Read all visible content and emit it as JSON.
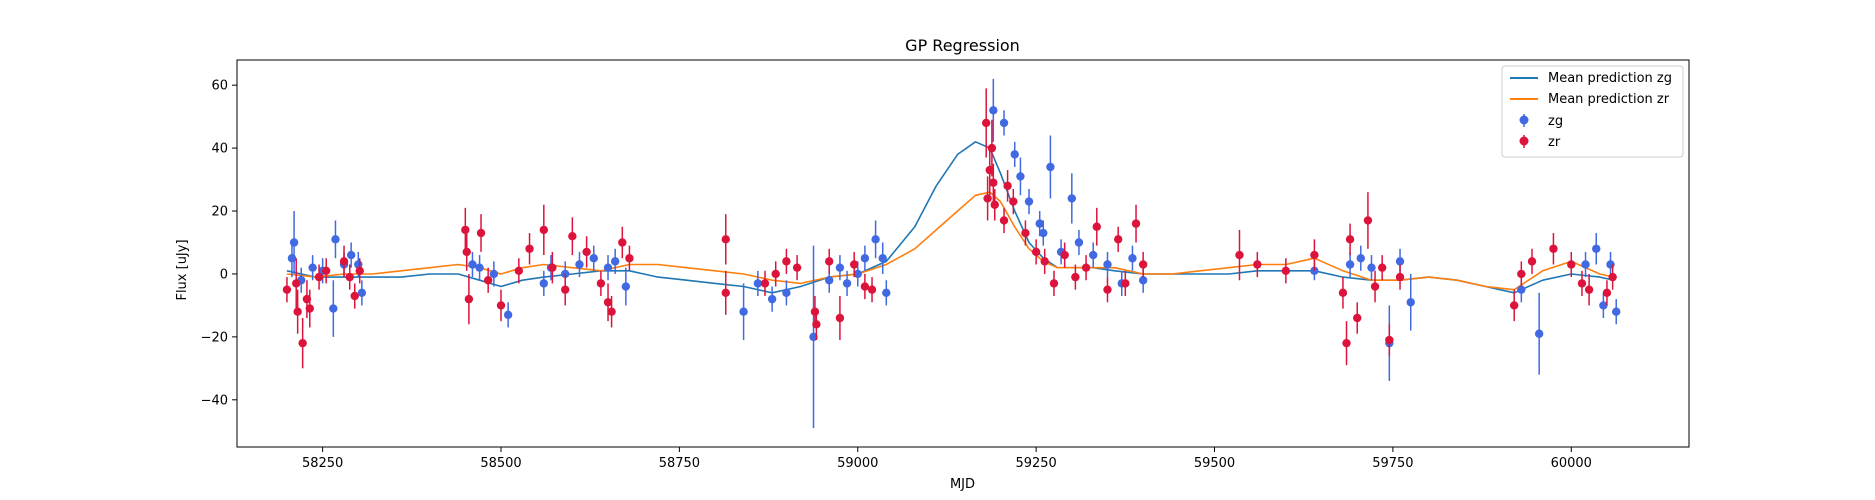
{
  "chart_data": {
    "type": "scatter",
    "title": "GP Regression",
    "xlabel": "MJD",
    "ylabel": "Flux [uJy]",
    "xlim": [
      58130,
      60165
    ],
    "ylim": [
      -55,
      68
    ],
    "xticks": [
      58250,
      58500,
      58750,
      59000,
      59250,
      59500,
      59750,
      60000
    ],
    "yticks": [
      -40,
      -20,
      0,
      20,
      40,
      60
    ],
    "grid": false,
    "legend_position": "top-right",
    "legend": [
      "Mean prediction zg",
      "Mean prediction zr",
      "zg",
      "zr"
    ],
    "colors": {
      "zg_line": "#1f77b4",
      "zr_line": "#ff7f0e",
      "zg_points": "#4169e1",
      "zr_points": "#dc143c"
    },
    "lines": [
      {
        "name": "Mean prediction zg",
        "x": [
          58200,
          58240,
          58280,
          58320,
          58360,
          58400,
          58440,
          58470,
          58500,
          58530,
          58560,
          58600,
          58640,
          58680,
          58720,
          58760,
          58800,
          58840,
          58880,
          58920,
          58960,
          59000,
          59040,
          59080,
          59110,
          59140,
          59165,
          59185,
          59200,
          59220,
          59240,
          59260,
          59280,
          59300,
          59330,
          59360,
          59400,
          59440,
          59480,
          59520,
          59560,
          59600,
          59640,
          59680,
          59720,
          59760,
          59800,
          59840,
          59880,
          59920,
          59960,
          60000,
          60040,
          60060
        ],
        "y": [
          1,
          -1,
          -1,
          -1,
          -1,
          0,
          0,
          -2,
          -4,
          -2,
          -1,
          0,
          1,
          1,
          -1,
          -2,
          -3,
          -4,
          -6,
          -4,
          -1,
          0,
          4,
          15,
          28,
          38,
          42,
          40,
          32,
          20,
          10,
          5,
          2,
          2,
          2,
          1,
          0,
          0,
          0,
          0,
          1,
          1,
          1,
          -1,
          -2,
          -2,
          -1,
          -2,
          -4,
          -6,
          -2,
          0,
          -1,
          -2
        ]
      },
      {
        "name": "Mean prediction zr",
        "x": [
          58200,
          58240,
          58280,
          58320,
          58360,
          58400,
          58440,
          58470,
          58500,
          58530,
          58560,
          58600,
          58640,
          58680,
          58720,
          58760,
          58800,
          58840,
          58880,
          58920,
          58960,
          59000,
          59040,
          59080,
          59110,
          59140,
          59165,
          59185,
          59200,
          59220,
          59240,
          59260,
          59280,
          59300,
          59330,
          59360,
          59400,
          59440,
          59480,
          59520,
          59560,
          59600,
          59640,
          59680,
          59720,
          59760,
          59800,
          59840,
          59880,
          59920,
          59960,
          60000,
          60040,
          60060
        ],
        "y": [
          0,
          -1,
          0,
          0,
          1,
          2,
          3,
          2,
          0,
          2,
          3,
          2,
          1,
          3,
          3,
          2,
          1,
          0,
          -2,
          -3,
          -1,
          0,
          3,
          8,
          14,
          20,
          25,
          26,
          23,
          15,
          8,
          4,
          2,
          2,
          2,
          2,
          0,
          0,
          1,
          2,
          3,
          3,
          5,
          1,
          -2,
          -2,
          -1,
          -2,
          -4,
          -5,
          1,
          4,
          0,
          -1
        ]
      }
    ],
    "series": [
      {
        "name": "zg",
        "points": [
          {
            "x": 58207,
            "y": 5,
            "err": 6
          },
          {
            "x": 58210,
            "y": 10,
            "err": 10
          },
          {
            "x": 58220,
            "y": -2,
            "err": 4
          },
          {
            "x": 58236,
            "y": 2,
            "err": 4
          },
          {
            "x": 58250,
            "y": 1,
            "err": 4
          },
          {
            "x": 58265,
            "y": -11,
            "err": 9
          },
          {
            "x": 58268,
            "y": 11,
            "err": 6
          },
          {
            "x": 58280,
            "y": 3,
            "err": 4
          },
          {
            "x": 58290,
            "y": 6,
            "err": 4
          },
          {
            "x": 58300,
            "y": 3,
            "err": 4
          },
          {
            "x": 58305,
            "y": -6,
            "err": 4
          },
          {
            "x": 58460,
            "y": 3,
            "err": 4
          },
          {
            "x": 58470,
            "y": 2,
            "err": 4
          },
          {
            "x": 58490,
            "y": 0,
            "err": 4
          },
          {
            "x": 58510,
            "y": -13,
            "err": 4
          },
          {
            "x": 58560,
            "y": -3,
            "err": 4
          },
          {
            "x": 58570,
            "y": 2,
            "err": 4
          },
          {
            "x": 58590,
            "y": 0,
            "err": 4
          },
          {
            "x": 58610,
            "y": 3,
            "err": 4
          },
          {
            "x": 58630,
            "y": 5,
            "err": 4
          },
          {
            "x": 58650,
            "y": 2,
            "err": 4
          },
          {
            "x": 58660,
            "y": 4,
            "err": 4
          },
          {
            "x": 58675,
            "y": -4,
            "err": 6
          },
          {
            "x": 58840,
            "y": -12,
            "err": 9
          },
          {
            "x": 58860,
            "y": -3,
            "err": 4
          },
          {
            "x": 58880,
            "y": -8,
            "err": 4
          },
          {
            "x": 58900,
            "y": -6,
            "err": 4
          },
          {
            "x": 58938,
            "y": -20,
            "err": 29
          },
          {
            "x": 58960,
            "y": -2,
            "err": 4
          },
          {
            "x": 58975,
            "y": 2,
            "err": 4
          },
          {
            "x": 58985,
            "y": -3,
            "err": 4
          },
          {
            "x": 59000,
            "y": 0,
            "err": 4
          },
          {
            "x": 59010,
            "y": 5,
            "err": 4
          },
          {
            "x": 59025,
            "y": 11,
            "err": 6
          },
          {
            "x": 59035,
            "y": 5,
            "err": 5
          },
          {
            "x": 59040,
            "y": -6,
            "err": 4
          },
          {
            "x": 59190,
            "y": 52,
            "err": 10
          },
          {
            "x": 59205,
            "y": 48,
            "err": 4
          },
          {
            "x": 59220,
            "y": 38,
            "err": 4
          },
          {
            "x": 59228,
            "y": 31,
            "err": 6
          },
          {
            "x": 59240,
            "y": 23,
            "err": 4
          },
          {
            "x": 59255,
            "y": 16,
            "err": 4
          },
          {
            "x": 59260,
            "y": 13,
            "err": 4
          },
          {
            "x": 59270,
            "y": 34,
            "err": 10
          },
          {
            "x": 59285,
            "y": 7,
            "err": 4
          },
          {
            "x": 59300,
            "y": 24,
            "err": 8
          },
          {
            "x": 59310,
            "y": 10,
            "err": 4
          },
          {
            "x": 59330,
            "y": 6,
            "err": 4
          },
          {
            "x": 59350,
            "y": 3,
            "err": 4
          },
          {
            "x": 59370,
            "y": -3,
            "err": 4
          },
          {
            "x": 59385,
            "y": 5,
            "err": 4
          },
          {
            "x": 59400,
            "y": -2,
            "err": 4
          },
          {
            "x": 59640,
            "y": 1,
            "err": 3
          },
          {
            "x": 59690,
            "y": 3,
            "err": 4
          },
          {
            "x": 59705,
            "y": 5,
            "err": 4
          },
          {
            "x": 59720,
            "y": 2,
            "err": 4
          },
          {
            "x": 59745,
            "y": -22,
            "err": 12
          },
          {
            "x": 59760,
            "y": 4,
            "err": 4
          },
          {
            "x": 59775,
            "y": -9,
            "err": 9
          },
          {
            "x": 59930,
            "y": -5,
            "err": 4
          },
          {
            "x": 59955,
            "y": -19,
            "err": 13
          },
          {
            "x": 60020,
            "y": 3,
            "err": 4
          },
          {
            "x": 60035,
            "y": 8,
            "err": 5
          },
          {
            "x": 60045,
            "y": -10,
            "err": 4
          },
          {
            "x": 60055,
            "y": 3,
            "err": 4
          },
          {
            "x": 60063,
            "y": -12,
            "err": 4
          }
        ]
      },
      {
        "name": "zr",
        "points": [
          {
            "x": 58200,
            "y": -5,
            "err": 4
          },
          {
            "x": 58213,
            "y": -3,
            "err": 8
          },
          {
            "x": 58215,
            "y": -12,
            "err": 7
          },
          {
            "x": 58222,
            "y": -22,
            "err": 8
          },
          {
            "x": 58228,
            "y": -8,
            "err": 6
          },
          {
            "x": 58232,
            "y": -11,
            "err": 6
          },
          {
            "x": 58245,
            "y": -1,
            "err": 4
          },
          {
            "x": 58255,
            "y": 1,
            "err": 4
          },
          {
            "x": 58280,
            "y": 4,
            "err": 5
          },
          {
            "x": 58288,
            "y": -1,
            "err": 4
          },
          {
            "x": 58295,
            "y": -7,
            "err": 4
          },
          {
            "x": 58302,
            "y": 1,
            "err": 4
          },
          {
            "x": 58450,
            "y": 14,
            "err": 7
          },
          {
            "x": 58452,
            "y": 7,
            "err": 6
          },
          {
            "x": 58455,
            "y": -8,
            "err": 8
          },
          {
            "x": 58472,
            "y": 13,
            "err": 6
          },
          {
            "x": 58482,
            "y": -2,
            "err": 4
          },
          {
            "x": 58500,
            "y": -10,
            "err": 5
          },
          {
            "x": 58525,
            "y": 1,
            "err": 4
          },
          {
            "x": 58540,
            "y": 8,
            "err": 5
          },
          {
            "x": 58560,
            "y": 14,
            "err": 8
          },
          {
            "x": 58572,
            "y": 2,
            "err": 5
          },
          {
            "x": 58590,
            "y": -5,
            "err": 5
          },
          {
            "x": 58600,
            "y": 12,
            "err": 6
          },
          {
            "x": 58620,
            "y": 7,
            "err": 5
          },
          {
            "x": 58640,
            "y": -3,
            "err": 4
          },
          {
            "x": 58650,
            "y": -9,
            "err": 6
          },
          {
            "x": 58655,
            "y": -12,
            "err": 5
          },
          {
            "x": 58670,
            "y": 10,
            "err": 5
          },
          {
            "x": 58680,
            "y": 5,
            "err": 4
          },
          {
            "x": 58815,
            "y": 11,
            "err": 8
          },
          {
            "x": 58815,
            "y": -6,
            "err": 7
          },
          {
            "x": 58870,
            "y": -3,
            "err": 4
          },
          {
            "x": 58885,
            "y": 0,
            "err": 4
          },
          {
            "x": 58900,
            "y": 4,
            "err": 4
          },
          {
            "x": 58915,
            "y": 2,
            "err": 4
          },
          {
            "x": 58940,
            "y": -12,
            "err": 5
          },
          {
            "x": 58942,
            "y": -16,
            "err": 5
          },
          {
            "x": 58960,
            "y": 4,
            "err": 4
          },
          {
            "x": 58975,
            "y": -14,
            "err": 7
          },
          {
            "x": 58995,
            "y": 3,
            "err": 4
          },
          {
            "x": 59010,
            "y": -4,
            "err": 4
          },
          {
            "x": 59020,
            "y": -5,
            "err": 4
          },
          {
            "x": 59180,
            "y": 48,
            "err": 11
          },
          {
            "x": 59182,
            "y": 24,
            "err": 7
          },
          {
            "x": 59185,
            "y": 33,
            "err": 8
          },
          {
            "x": 59188,
            "y": 40,
            "err": 9
          },
          {
            "x": 59190,
            "y": 29,
            "err": 6
          },
          {
            "x": 59192,
            "y": 22,
            "err": 5
          },
          {
            "x": 59205,
            "y": 17,
            "err": 4
          },
          {
            "x": 59210,
            "y": 28,
            "err": 5
          },
          {
            "x": 59218,
            "y": 23,
            "err": 4
          },
          {
            "x": 59235,
            "y": 13,
            "err": 4
          },
          {
            "x": 59250,
            "y": 7,
            "err": 4
          },
          {
            "x": 59262,
            "y": 4,
            "err": 4
          },
          {
            "x": 59275,
            "y": -3,
            "err": 4
          },
          {
            "x": 59290,
            "y": 6,
            "err": 4
          },
          {
            "x": 59305,
            "y": -1,
            "err": 4
          },
          {
            "x": 59320,
            "y": 2,
            "err": 4
          },
          {
            "x": 59335,
            "y": 15,
            "err": 6
          },
          {
            "x": 59350,
            "y": -5,
            "err": 4
          },
          {
            "x": 59365,
            "y": 11,
            "err": 4
          },
          {
            "x": 59375,
            "y": -3,
            "err": 4
          },
          {
            "x": 59390,
            "y": 16,
            "err": 6
          },
          {
            "x": 59400,
            "y": 3,
            "err": 4
          },
          {
            "x": 59535,
            "y": 6,
            "err": 8
          },
          {
            "x": 59560,
            "y": 3,
            "err": 4
          },
          {
            "x": 59600,
            "y": 1,
            "err": 4
          },
          {
            "x": 59640,
            "y": 6,
            "err": 5
          },
          {
            "x": 59680,
            "y": -6,
            "err": 5
          },
          {
            "x": 59685,
            "y": -22,
            "err": 7
          },
          {
            "x": 59690,
            "y": 11,
            "err": 5
          },
          {
            "x": 59700,
            "y": -14,
            "err": 5
          },
          {
            "x": 59715,
            "y": 17,
            "err": 9
          },
          {
            "x": 59725,
            "y": -4,
            "err": 5
          },
          {
            "x": 59735,
            "y": 2,
            "err": 4
          },
          {
            "x": 59745,
            "y": -21,
            "err": 5
          },
          {
            "x": 59760,
            "y": -1,
            "err": 4
          },
          {
            "x": 59920,
            "y": -10,
            "err": 5
          },
          {
            "x": 59930,
            "y": 0,
            "err": 4
          },
          {
            "x": 59945,
            "y": 4,
            "err": 4
          },
          {
            "x": 59975,
            "y": 8,
            "err": 5
          },
          {
            "x": 60000,
            "y": 3,
            "err": 4
          },
          {
            "x": 60015,
            "y": -3,
            "err": 4
          },
          {
            "x": 60025,
            "y": -5,
            "err": 5
          },
          {
            "x": 60050,
            "y": -6,
            "err": 4
          },
          {
            "x": 60058,
            "y": -1,
            "err": 4
          }
        ]
      }
    ]
  }
}
